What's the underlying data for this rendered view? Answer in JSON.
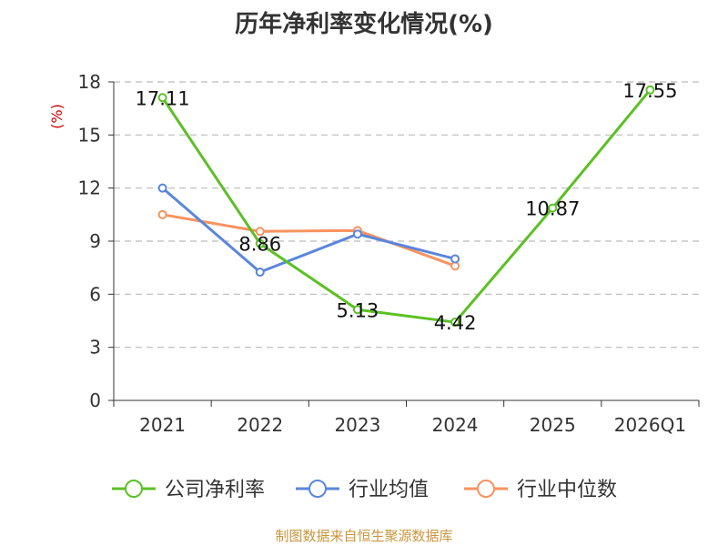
{
  "chart_data": {
    "type": "line",
    "title": "历年净利率变化情况(%)",
    "ylabel": "(%)",
    "xlabel": "",
    "categories": [
      "2021",
      "2022",
      "2023",
      "2024",
      "2025",
      "2026Q1"
    ],
    "ylim": [
      0,
      18
    ],
    "yticks": [
      0,
      3,
      6,
      9,
      12,
      15,
      18
    ],
    "grid": true,
    "legend_position": "bottom",
    "series": [
      {
        "name": "公司净利率",
        "color": "#5cc025",
        "values": [
          17.11,
          8.86,
          5.13,
          4.42,
          10.87,
          17.55
        ],
        "labels": [
          "17.11",
          "8.86",
          "5.13",
          "4.42",
          "10.87",
          "17.55"
        ],
        "show_labels": true
      },
      {
        "name": "行业均值",
        "color": "#5b86db",
        "values": [
          12.0,
          7.25,
          9.4,
          8.0,
          null,
          null
        ],
        "show_labels": false
      },
      {
        "name": "行业中位数",
        "color": "#f8935f",
        "values": [
          10.5,
          9.55,
          9.6,
          7.6,
          null,
          null
        ],
        "show_labels": false
      }
    ]
  },
  "source": "制图数据来自恒生聚源数据库",
  "colors": {
    "title": "#333333",
    "unit": "#cc0000",
    "source": "#c8963e",
    "grid": "#bbbbbb",
    "axis": "#333333"
  }
}
